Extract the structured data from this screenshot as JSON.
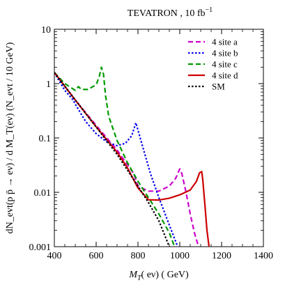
{
  "chart_data": {
    "type": "line",
    "title": "TEVATRON , 10 fb",
    "title_sup": "−1",
    "xlabel": "M",
    "xlabel_sub": "T",
    "xlabel_rest": "( eν) ( GeV)",
    "ylabel": "dN_evt(p p̄ → eν) / d M_T(eν) (N_evt / 10 GeV)",
    "xlim": [
      400,
      1400
    ],
    "ylim": [
      0.001,
      10
    ],
    "yscale": "log",
    "grid": false,
    "legend_position": "top-right",
    "x_ticks": [
      400,
      600,
      800,
      1000,
      1200,
      1400
    ],
    "x_tick_labels": [
      "400",
      "600",
      "800",
      "1000",
      "1200",
      "1400"
    ],
    "y_ticks": [
      0.001,
      0.01,
      0.1,
      1,
      10
    ],
    "y_tick_labels": [
      "0.001",
      "0.01",
      "0.1",
      "1",
      "10"
    ],
    "series": [
      {
        "name": "4 site  a",
        "color": "#cc00cc",
        "dash": "dash",
        "x": [
          400,
          500,
          600,
          700,
          780,
          800,
          850,
          900,
          950,
          980,
          1000,
          1010,
          1030,
          1050,
          1070,
          1090
        ],
        "y": [
          1.6,
          0.5,
          0.17,
          0.06,
          0.022,
          0.013,
          0.0105,
          0.0105,
          0.013,
          0.018,
          0.027,
          0.022,
          0.01,
          0.004,
          0.0018,
          0.001
        ]
      },
      {
        "name": "4 site  b",
        "color": "#0000ee",
        "dash": "dot",
        "x": [
          400,
          450,
          490,
          500,
          550,
          600,
          650,
          700,
          740,
          770,
          790,
          800,
          830,
          860,
          900,
          950,
          990
        ],
        "y": [
          1.6,
          0.75,
          0.5,
          0.42,
          0.2,
          0.12,
          0.085,
          0.072,
          0.08,
          0.11,
          0.19,
          0.14,
          0.055,
          0.022,
          0.008,
          0.0025,
          0.001
        ]
      },
      {
        "name": "4 site  c",
        "color": "#009900",
        "dash": "dash",
        "x": [
          400,
          450,
          500,
          515,
          530,
          560,
          600,
          615,
          625,
          635,
          645,
          660,
          700,
          750,
          800,
          850,
          900,
          950,
          975
        ],
        "y": [
          1.6,
          1.0,
          0.75,
          0.88,
          0.78,
          0.78,
          0.95,
          1.35,
          2.0,
          1.5,
          0.6,
          0.25,
          0.09,
          0.035,
          0.016,
          0.008,
          0.004,
          0.0018,
          0.001
        ]
      },
      {
        "name": "4 site  d",
        "color": "#cc0000",
        "dash": "solid",
        "x": [
          400,
          500,
          600,
          700,
          750,
          800,
          850,
          900,
          950,
          1000,
          1050,
          1080,
          1095,
          1105,
          1110,
          1120,
          1130,
          1140
        ],
        "y": [
          1.6,
          0.5,
          0.16,
          0.055,
          0.028,
          0.012,
          0.0073,
          0.0072,
          0.0078,
          0.009,
          0.011,
          0.016,
          0.023,
          0.024,
          0.017,
          0.006,
          0.002,
          0.001
        ]
      },
      {
        "name": "SM",
        "color": "#000000",
        "dash": "dot",
        "x": [
          400,
          500,
          600,
          700,
          800,
          850,
          900,
          950
        ],
        "y": [
          1.6,
          0.5,
          0.16,
          0.05,
          0.013,
          0.0065,
          0.003,
          0.001
        ]
      }
    ]
  }
}
